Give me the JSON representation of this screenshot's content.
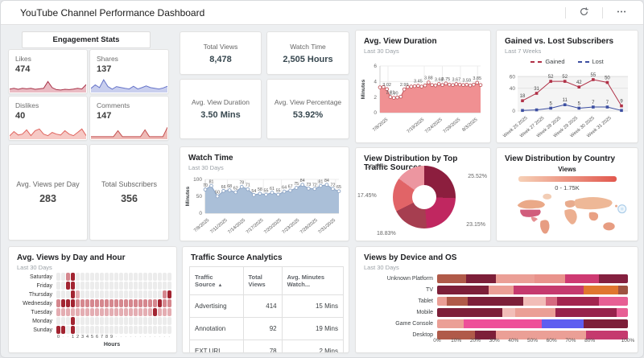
{
  "header": {
    "title": "YouTube Channel Performance Dashboard"
  },
  "engagement": {
    "title": "Engagement Stats",
    "cards": [
      {
        "label": "Likes",
        "value": "474",
        "stroke": "#a83248",
        "fill": "#e5aab4",
        "spark": [
          1.5,
          2,
          1.4,
          2,
          1.7,
          2,
          1.4,
          1.7,
          2,
          6,
          2.4,
          1.2,
          1,
          1.4,
          1.2,
          1.5,
          2,
          1.6,
          4.2
        ]
      },
      {
        "label": "Shares",
        "value": "137",
        "stroke": "#6674c9",
        "fill": "#bcc3ea",
        "spark": [
          2,
          4,
          2.4,
          7,
          3,
          1.5,
          3,
          2.5,
          2,
          1.6,
          3.2,
          1.6,
          2.4,
          3.4,
          2.4,
          2,
          1.6,
          2.2,
          3.2
        ]
      },
      {
        "label": "Dislikes",
        "value": "40",
        "stroke": "#e0645e",
        "fill": "#f4bcb7",
        "spark": [
          1.5,
          4,
          2,
          2.5,
          5,
          1.6,
          4.5,
          5.5,
          2.5,
          1.6,
          3.5,
          2.5,
          2,
          4.5,
          2.5,
          1.6,
          3.5,
          5.5,
          1.6
        ]
      },
      {
        "label": "Comments",
        "value": "147",
        "stroke": "#c34d4d",
        "fill": "#eaaaa5",
        "spark": [
          1,
          1,
          1,
          1,
          1,
          1,
          4.5,
          1,
          1,
          1,
          1,
          1,
          5,
          1,
          1,
          1,
          1,
          6.5
        ]
      }
    ],
    "summary": [
      {
        "label": "Avg. Views per Day",
        "value": "283"
      },
      {
        "label": "Total Subscribers",
        "value": "356"
      }
    ]
  },
  "kpis": [
    {
      "label": "Total Views",
      "value": "8,478"
    },
    {
      "label": "Watch Time",
      "value": "2,505 Hours"
    },
    {
      "label": "Avg. View Duration",
      "value": "3.50 Mins"
    },
    {
      "label": "Avg. View Percentage",
      "value": "53.92%"
    }
  ],
  "avg_view_duration": {
    "type": "area",
    "title": "Avg. View Duration",
    "subtitle": "Last 30 Days",
    "ylabel": "Minutes",
    "ymax": 6,
    "yticks": [
      0,
      2,
      4,
      6
    ],
    "values": [
      3.25,
      3.3,
      3.02,
      2.01,
      1.9,
      1.95,
      2.05,
      2.99,
      3.3,
      3.35,
      3.4,
      3.45,
      3.35,
      3.5,
      3.88,
      3.55,
      3.5,
      3.68,
      3.55,
      3.75,
      3.6,
      3.55,
      3.67,
      3.6,
      3.55,
      3.59,
      3.5,
      3.6,
      3.85,
      3.55
    ],
    "point_labels": [
      {
        "i": 2,
        "t": "3.02"
      },
      {
        "i": 3,
        "t": "2.01"
      },
      {
        "i": 4,
        "t": "1.90"
      },
      {
        "i": 7,
        "t": "2.99"
      },
      {
        "i": 11,
        "t": "3.45"
      },
      {
        "i": 14,
        "t": "3.88"
      },
      {
        "i": 17,
        "t": "3.68"
      },
      {
        "i": 19,
        "t": "3.75"
      },
      {
        "i": 22,
        "t": "3.67"
      },
      {
        "i": 25,
        "t": "3.59"
      },
      {
        "i": 28,
        "t": "3.85"
      }
    ],
    "xlabels": [
      "7/8/2025",
      "7/19/2025",
      "7/24/2025",
      "7/29/2025",
      "8/3/2025"
    ],
    "stroke": "#c2565c",
    "fill": "#f09092"
  },
  "gained_lost": {
    "type": "line",
    "title": "Gained vs. Lost Subscribers",
    "subtitle": "Last 7 Weeks",
    "ymax": 62,
    "yticks": [
      0,
      40,
      60
    ],
    "legend": [
      {
        "label": "Gained",
        "color": "#b03046"
      },
      {
        "label": "Lost",
        "color": "#3d4fa1"
      }
    ],
    "xlabels": [
      "Week 25 2025",
      "Week 27 2025",
      "Week 28 2025",
      "Week 29 2025",
      "Week 30 2025",
      "Week 31 2025"
    ],
    "series": [
      {
        "name": "Lost",
        "color": "#3d4fa1",
        "values": [
          1,
          2,
          5,
          11,
          5,
          7,
          7,
          1
        ],
        "labels": [
          "",
          "",
          "5",
          "11",
          "5",
          "7",
          "7",
          ""
        ]
      },
      {
        "name": "Gained",
        "color": "#b03046",
        "values": [
          18,
          31,
          52,
          52,
          42,
          55,
          50,
          9
        ],
        "labels": [
          "18",
          "31",
          "52",
          "52",
          "42",
          "55",
          "50",
          "9"
        ]
      }
    ]
  },
  "watch_time": {
    "type": "area",
    "title": "Watch Time",
    "subtitle": "Last 30 Days",
    "ylabel": "Minutes",
    "ymax": 100,
    "yticks": [
      0,
      50,
      100
    ],
    "values": [
      70,
      81,
      50,
      66,
      68,
      62,
      78,
      71,
      54,
      58,
      55,
      61,
      55,
      64,
      67,
      75,
      84,
      73,
      72,
      81,
      84,
      72,
      65
    ],
    "xlabels": [
      "7/8/2025",
      "7/11/2025",
      "7/14/2025",
      "7/17/2025",
      "7/20/2025",
      "7/23/2025",
      "7/28/2025",
      "7/31/2025"
    ],
    "stroke": "#8ba3c4",
    "fill": "#aabfd8"
  },
  "traffic_donut": {
    "type": "pie",
    "title": "View Distribution by Top Traffic Sources",
    "slices": [
      {
        "pct": "25.52%",
        "value": 25.52,
        "color": "#8c1e3e"
      },
      {
        "pct": "23.15%",
        "value": 23.15,
        "color": "#c02760"
      },
      {
        "pct": "18.83%",
        "value": 18.83,
        "color": "#a63e50"
      },
      {
        "pct": "17.45%",
        "value": 17.45,
        "color": "#e16467"
      },
      {
        "pct": "15.05%",
        "value": 15.05,
        "color": "#ec96a0"
      }
    ]
  },
  "country_map": {
    "title": "View Distribution by Country",
    "legend_title": "Views",
    "legend_range": "0 - 1.75K",
    "gradient_from": "#f6d0b6",
    "gradient_to": "#e2584e"
  },
  "heatmap": {
    "type": "heatmap",
    "title": "Avg. Views by Day and Hour",
    "subtitle": "Last 30 Days",
    "xlabel": "Hours",
    "days": [
      "Saturday",
      "Friday",
      "Thursday",
      "Wednesday",
      "Tuesday",
      "Monday",
      "Sunday"
    ],
    "rows": [
      "002300000000000000000000",
      "003300000000000000000000",
      "000310000000000000000023",
      "233322222222222222222322",
      "111111111111111111113111",
      "000300000000000000000000",
      "330300000000000000000000"
    ],
    "xlabels": [
      "0",
      "-",
      "-",
      "1",
      "2",
      "3",
      "4",
      "5",
      "6",
      "7",
      "8",
      "9",
      "-",
      "-",
      "-",
      "-",
      "-",
      "-",
      "-",
      "-",
      "-",
      "-",
      "-",
      "-"
    ],
    "palette": {
      "0": "#ececec",
      "1": "#e4adb2",
      "2": "#d5878e",
      "3": "#a22431"
    }
  },
  "traffic_table": {
    "type": "table",
    "title": "Traffic Source Analytics",
    "headers": [
      {
        "label": "Traffic Source",
        "sort": "asc"
      },
      {
        "label": "Total Views",
        "sort": ""
      },
      {
        "label": "Avg. Minutes Watch...",
        "sort": ""
      }
    ],
    "rows": [
      [
        "Advertising",
        "414",
        "15 Mins"
      ],
      [
        "Annotation",
        "92",
        "19 Mins"
      ],
      [
        "EXT URL",
        "78",
        "2 Mins"
      ]
    ]
  },
  "device_os": {
    "type": "bar",
    "title": "Views by Device and OS",
    "subtitle": "Last 30 Days",
    "xticks": [
      {
        "label": "0%",
        "pos": 0
      },
      {
        "label": "10%",
        "pos": 10
      },
      {
        "label": "20%",
        "pos": 20
      },
      {
        "label": "30%",
        "pos": 30
      },
      {
        "label": "40%",
        "pos": 40
      },
      {
        "label": "50%",
        "pos": 50
      },
      {
        "label": "60%",
        "pos": 60
      },
      {
        "label": "70%",
        "pos": 70
      },
      {
        "label": "80%",
        "pos": 80
      },
      {
        "label": "100%",
        "pos": 100
      }
    ],
    "rows": [
      {
        "name": "Unknown Platform",
        "segments": [
          [
            15,
            "#b05a49"
          ],
          [
            16,
            "#7d1f39"
          ],
          [
            20,
            "#eb9f96"
          ],
          [
            16,
            "#e9938c"
          ],
          [
            18,
            "#ce3a72"
          ],
          [
            15,
            "#84203f"
          ]
        ]
      },
      {
        "name": "TV",
        "segments": [
          [
            27,
            "#7d1f39"
          ],
          [
            13,
            "#eb9f96"
          ],
          [
            37,
            "#c53a6e"
          ],
          [
            18,
            "#e0762f"
          ],
          [
            5,
            "#9e5240"
          ]
        ]
      },
      {
        "name": "Tablet",
        "segments": [
          [
            5,
            "#eb9f96"
          ],
          [
            11,
            "#b05a49"
          ],
          [
            29,
            "#7d1f39"
          ],
          [
            12,
            "#f2bdb8"
          ],
          [
            6,
            "#d66a80"
          ],
          [
            22,
            "#a3254f"
          ],
          [
            15,
            "#e75f94"
          ]
        ]
      },
      {
        "name": "Mobile",
        "segments": [
          [
            34,
            "#7d1f39"
          ],
          [
            7,
            "#f2bdb8"
          ],
          [
            21,
            "#eb9f96"
          ],
          [
            32,
            "#97224b"
          ],
          [
            6,
            "#e75f94"
          ]
        ]
      },
      {
        "name": "Game Console",
        "segments": [
          [
            14,
            "#eb9f96"
          ],
          [
            41,
            "#ee4f99"
          ],
          [
            22,
            "#5e5ef0"
          ],
          [
            23,
            "#7d1f39"
          ]
        ]
      },
      {
        "name": "Desktop",
        "segments": [
          [
            20,
            "#b05a49"
          ],
          [
            11,
            "#7d1f39"
          ],
          [
            47,
            "#eb9f96"
          ],
          [
            22,
            "#c53a6e"
          ]
        ]
      }
    ]
  }
}
